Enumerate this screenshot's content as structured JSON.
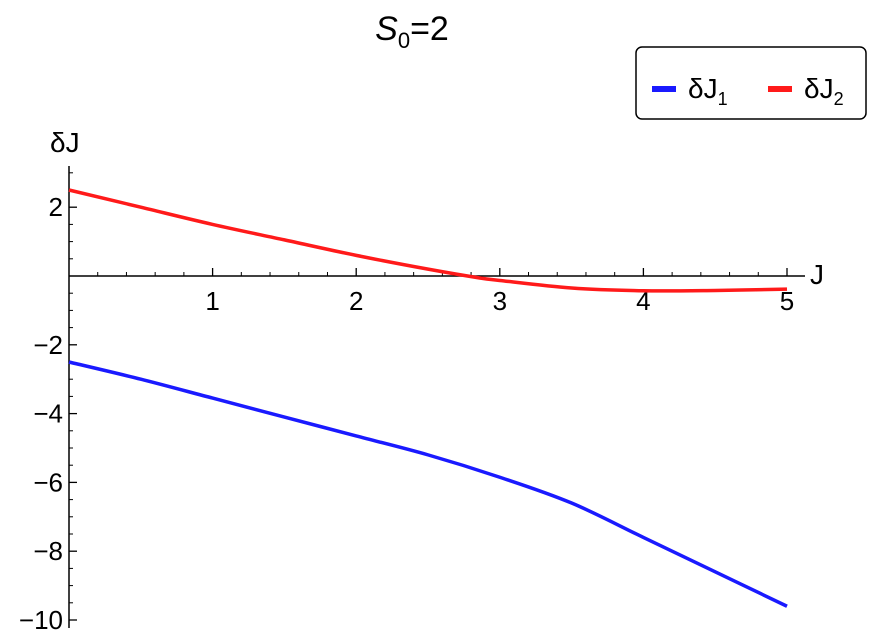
{
  "chart_data": {
    "type": "line",
    "title": {
      "symbol": "S",
      "subscript": "0",
      "rest": "=2"
    },
    "xlabel": "J",
    "ylabel": "δJ",
    "xlim": [
      0,
      5.1
    ],
    "ylim": [
      -10.3,
      3.2
    ],
    "grid": false,
    "legend_position": "top-right",
    "x_ticks": [
      {
        "value": 1,
        "label": "1"
      },
      {
        "value": 2,
        "label": "2"
      },
      {
        "value": 3,
        "label": "3"
      },
      {
        "value": 4,
        "label": "4"
      },
      {
        "value": 5,
        "label": "5"
      }
    ],
    "y_ticks": [
      {
        "value": 2,
        "label": "2"
      },
      {
        "value": -2,
        "label": "−2"
      },
      {
        "value": -4,
        "label": "−4"
      },
      {
        "value": -6,
        "label": "−6"
      },
      {
        "value": -8,
        "label": "−8"
      },
      {
        "value": -10,
        "label": "−10"
      }
    ],
    "series": [
      {
        "name": "δJ1",
        "name_base": "δJ",
        "name_sub": "1",
        "color": "#1a1aff",
        "x": [
          0,
          0.5,
          1,
          1.5,
          2,
          2.5,
          3,
          3.5,
          4,
          4.5,
          5
        ],
        "y": [
          -2.5,
          -3.0,
          -3.55,
          -4.1,
          -4.65,
          -5.2,
          -5.85,
          -6.6,
          -7.6,
          -8.6,
          -9.6
        ]
      },
      {
        "name": "δJ2",
        "name_base": "δJ",
        "name_sub": "2",
        "color": "#ff1a1a",
        "x": [
          0,
          0.5,
          1,
          1.5,
          2,
          2.5,
          2.85,
          3,
          3.5,
          4,
          4.5,
          5
        ],
        "y": [
          2.5,
          2.0,
          1.5,
          1.05,
          0.6,
          0.2,
          -0.05,
          -0.13,
          -0.35,
          -0.43,
          -0.42,
          -0.38
        ]
      }
    ]
  }
}
